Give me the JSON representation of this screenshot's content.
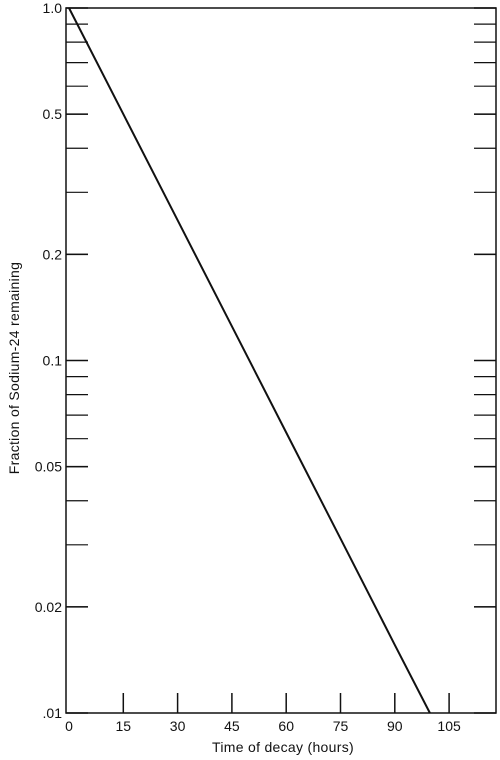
{
  "chart_data": {
    "type": "line",
    "title": "",
    "xlabel": "Time of decay (hours)",
    "ylabel": "Fraction of Sodium-24 remaining",
    "xlim": [
      0,
      120
    ],
    "ylim": [
      0.01,
      1.0
    ],
    "yscale": "log",
    "grid": false,
    "x_ticks": [
      0,
      15,
      30,
      45,
      60,
      75,
      90,
      105
    ],
    "x_tick_labels": [
      "0",
      "15",
      "30",
      "45",
      "60",
      "75",
      "90",
      "105"
    ],
    "y_ticks": [
      1.0,
      0.5,
      0.2,
      0.1,
      0.05,
      0.02,
      0.01
    ],
    "y_tick_labels": [
      "1.0",
      "0.5",
      "0.2",
      "0.1",
      "0.05",
      "0.02",
      ".01"
    ],
    "series": [
      {
        "x": [
          0,
          15,
          30,
          45,
          60,
          75,
          90,
          99.7
        ],
        "y": [
          1.0,
          0.5,
          0.25,
          0.125,
          0.0625,
          0.03125,
          0.0156,
          0.01
        ],
        "color": "#111111"
      }
    ]
  }
}
